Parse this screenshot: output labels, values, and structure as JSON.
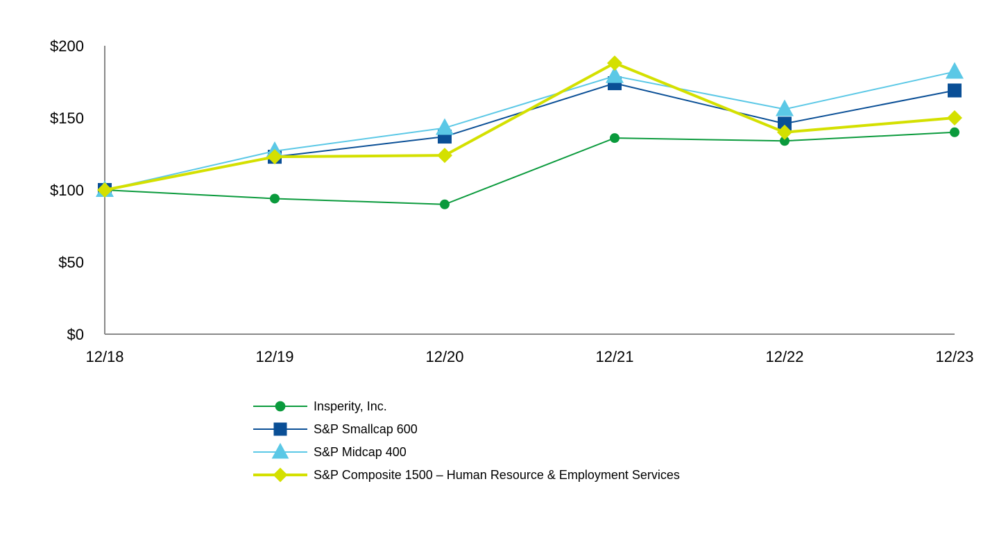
{
  "chart_data": {
    "type": "line",
    "title": "",
    "xlabel": "",
    "ylabel": "",
    "categories": [
      "12/18",
      "12/19",
      "12/20",
      "12/21",
      "12/22",
      "12/23"
    ],
    "ylim": [
      0,
      200
    ],
    "yticks": [
      0,
      50,
      100,
      150,
      200
    ],
    "ytick_labels": [
      "$0",
      "$50",
      "$100",
      "$150",
      "$200"
    ],
    "grid": false,
    "legend_position": "bottom",
    "series": [
      {
        "name": "Insperity, Inc.",
        "color": "#0a9a3c",
        "marker": "circle",
        "values": [
          100,
          94,
          90,
          136,
          134,
          140
        ]
      },
      {
        "name": "S&P Smallcap 600",
        "color": "#0a4f96",
        "marker": "square",
        "values": [
          100,
          123,
          137,
          174,
          146,
          169
        ]
      },
      {
        "name": "S&P Midcap 400",
        "color": "#5bc8e6",
        "marker": "triangle",
        "values": [
          100,
          127,
          143,
          179,
          156,
          182
        ]
      },
      {
        "name": "S&P Composite 1500 – Human Resource & Employment Services",
        "color": "#d4e000",
        "marker": "diamond",
        "values": [
          100,
          123,
          124,
          188,
          140,
          150
        ]
      }
    ]
  }
}
